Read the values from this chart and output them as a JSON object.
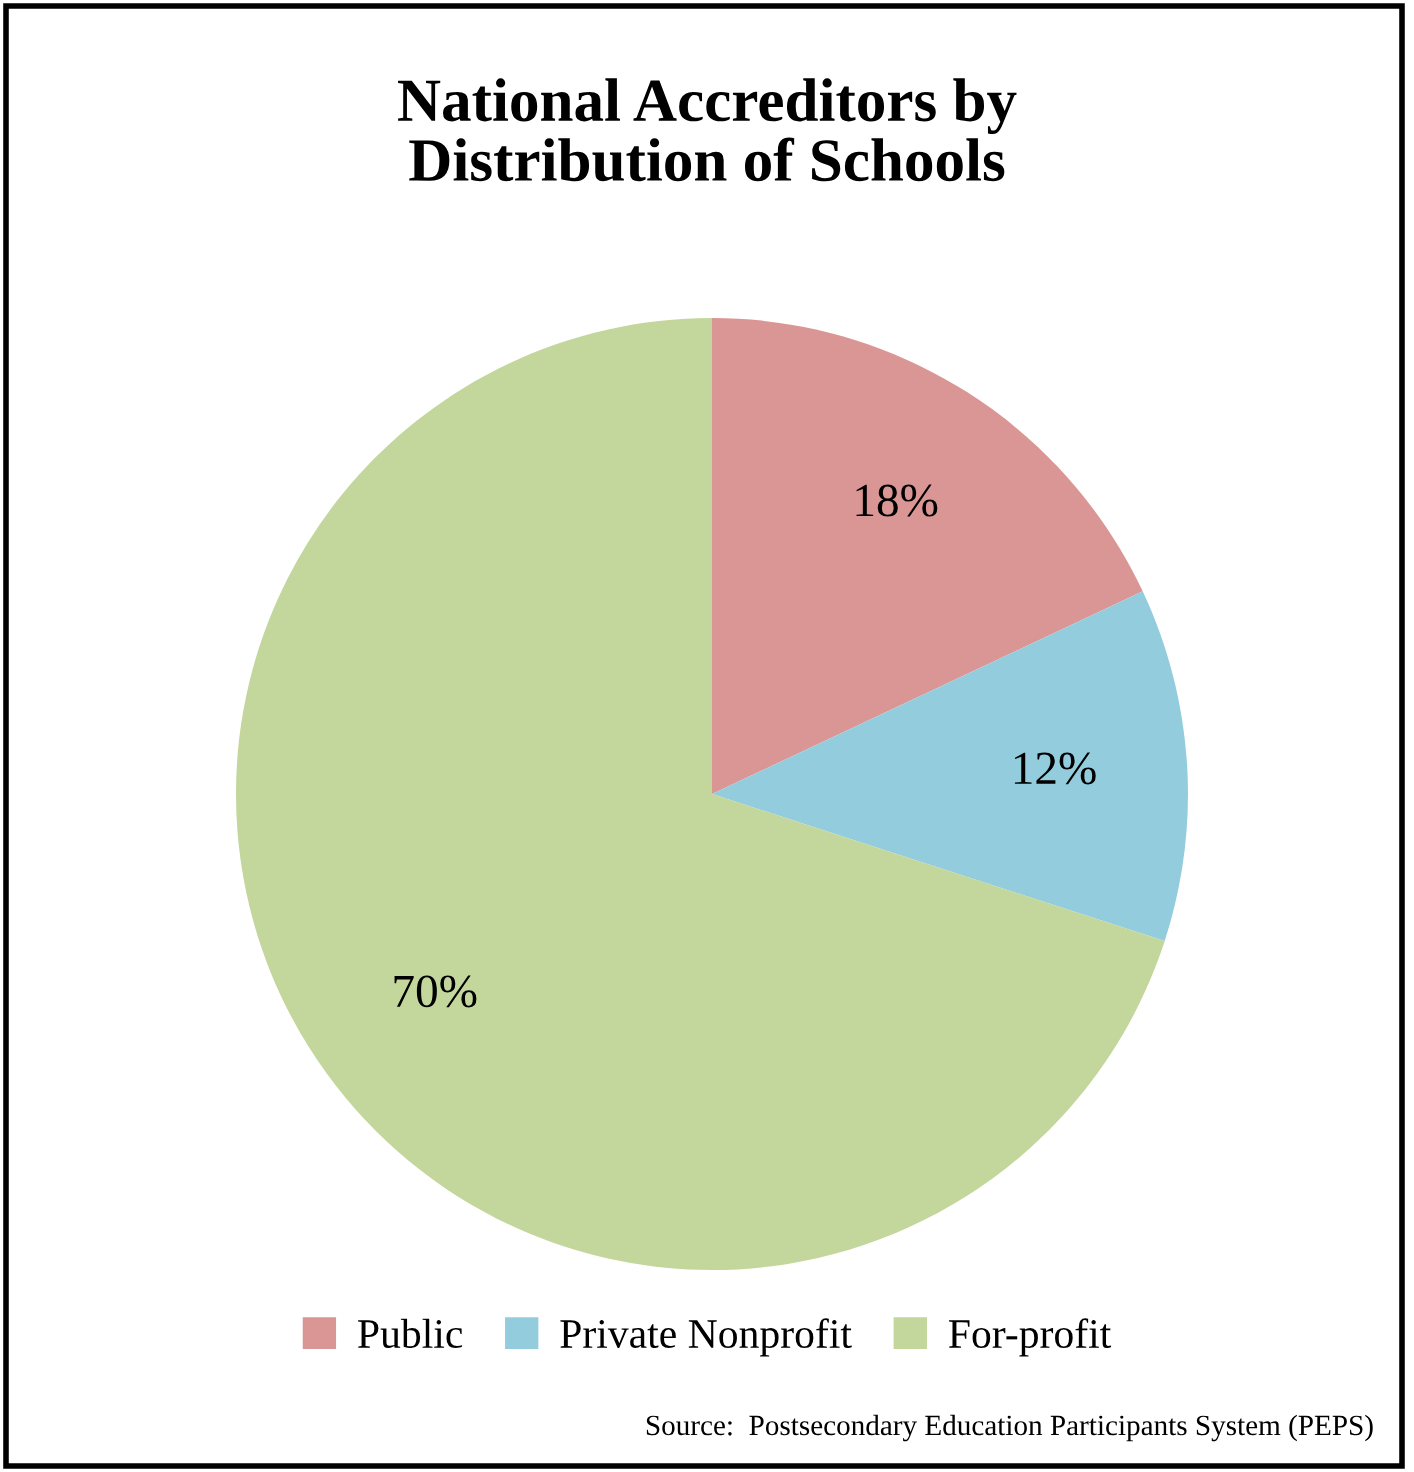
{
  "chart_data": {
    "type": "pie",
    "title": "National Accreditors by\nDistribution of Schools",
    "categories": [
      "Public",
      "Private Nonprofit",
      "For-profit"
    ],
    "values": [
      18,
      12,
      70
    ],
    "colors": [
      "#d99694",
      "#93cddd",
      "#c3d69b"
    ],
    "value_labels": [
      "18%",
      "12%",
      "70%"
    ],
    "legend": "bottom",
    "annotations": [
      "Source:  Postsecondary Education Participants System (PEPS)"
    ]
  }
}
